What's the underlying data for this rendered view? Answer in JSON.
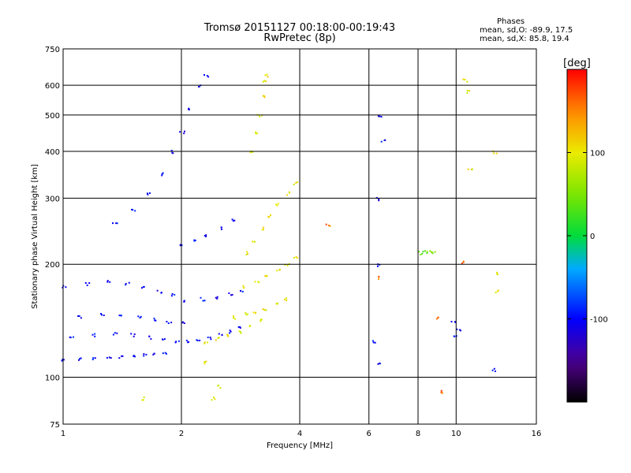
{
  "header": {
    "title_line1": "Tromsø 20151127 00:18:00-00:19:43",
    "title_line2": "RwPretec (8p)",
    "stats_title": "Phases",
    "stats_o": "mean, sd,O: -89.9, 17.5",
    "stats_x": "mean, sd,X:  85.8, 19.4"
  },
  "colorbar": {
    "unit_label": "[deg]",
    "ticks": [
      {
        "value": 100,
        "label": "100"
      },
      {
        "value": 0,
        "label": "0"
      },
      {
        "value": -100,
        "label": "-100"
      }
    ],
    "range": [
      -200,
      200
    ]
  },
  "colors": {
    "background": "#ffffff",
    "axes": "#000000",
    "dominant_o_mode": "#1f3cff",
    "dominant_x_mode": "#e6e61a"
  },
  "chart_data": {
    "type": "scatter",
    "title": "Tromsø 20151127 00:18:00-00:19:43",
    "subtitle": "RwPretec (8p)",
    "xlabel": "Frequency [MHz]",
    "ylabel": "Stationary phase Virtual Height [km]",
    "xscale": "log",
    "yscale": "log",
    "xlim": [
      1,
      16
    ],
    "ylim": [
      75,
      750
    ],
    "xticks": [
      1,
      2,
      4,
      6,
      8,
      10,
      16
    ],
    "xtick_labels": [
      "1",
      "2",
      "4",
      "6",
      "8",
      "10",
      "16"
    ],
    "yticks": [
      75,
      100,
      200,
      300,
      400,
      500,
      600,
      750
    ],
    "ytick_labels": [
      "75",
      "100",
      "200",
      "300",
      "400",
      "500",
      "600",
      "750"
    ],
    "grid": true,
    "color_variable": "Phase [deg]",
    "traces": [
      {
        "mode": "O",
        "phase": -100,
        "points": [
          [
            1.0,
            112
          ],
          [
            1.1,
            112
          ],
          [
            1.2,
            113
          ],
          [
            1.3,
            113
          ],
          [
            1.4,
            114
          ],
          [
            1.5,
            114
          ],
          [
            1.6,
            115
          ],
          [
            1.7,
            116
          ],
          [
            1.8,
            117
          ]
        ]
      },
      {
        "mode": "O",
        "phase": -100,
        "points": [
          [
            1.05,
            128
          ],
          [
            1.2,
            130
          ],
          [
            1.35,
            131
          ],
          [
            1.5,
            130
          ],
          [
            1.65,
            128
          ],
          [
            1.8,
            126
          ],
          [
            1.95,
            125
          ]
        ]
      },
      {
        "mode": "O",
        "phase": -100,
        "points": [
          [
            1.1,
            145
          ],
          [
            1.25,
            147
          ],
          [
            1.4,
            148
          ],
          [
            1.55,
            146
          ],
          [
            1.7,
            143
          ],
          [
            1.85,
            141
          ],
          [
            2.0,
            140
          ]
        ]
      },
      {
        "mode": "O",
        "phase": -100,
        "points": [
          [
            1.0,
            175
          ],
          [
            1.15,
            178
          ],
          [
            1.3,
            180
          ],
          [
            1.45,
            178
          ],
          [
            1.6,
            174
          ],
          [
            1.75,
            170
          ],
          [
            1.9,
            167
          ]
        ]
      },
      {
        "mode": "O",
        "phase": -100,
        "points": [
          [
            2.05,
            125
          ],
          [
            2.2,
            126
          ],
          [
            2.35,
            128
          ],
          [
            2.5,
            130
          ],
          [
            2.65,
            133
          ],
          [
            2.8,
            136
          ]
        ]
      },
      {
        "mode": "O",
        "phase": -100,
        "points": [
          [
            2.05,
            160
          ],
          [
            2.25,
            162
          ],
          [
            2.45,
            164
          ],
          [
            2.65,
            167
          ],
          [
            2.85,
            170
          ]
        ]
      },
      {
        "mode": "O",
        "phase": -100,
        "points": [
          [
            2.0,
            225
          ],
          [
            2.15,
            232
          ],
          [
            2.3,
            240
          ],
          [
            2.5,
            250
          ],
          [
            2.7,
            262
          ]
        ]
      },
      {
        "mode": "O",
        "phase": -100,
        "points": [
          [
            1.35,
            260
          ],
          [
            1.5,
            280
          ],
          [
            1.65,
            310
          ],
          [
            1.8,
            350
          ],
          [
            1.9,
            400
          ],
          [
            2.0,
            450
          ],
          [
            2.1,
            520
          ],
          [
            2.2,
            600
          ],
          [
            2.3,
            640
          ]
        ]
      },
      {
        "mode": "X",
        "phase": 100,
        "points": [
          [
            2.3,
            124
          ],
          [
            2.45,
            127
          ],
          [
            2.6,
            130
          ],
          [
            2.8,
            133
          ],
          [
            3.0,
            137
          ],
          [
            3.2,
            142
          ]
        ]
      },
      {
        "mode": "X",
        "phase": 100,
        "points": [
          [
            2.7,
            145
          ],
          [
            2.9,
            148
          ],
          [
            3.05,
            150
          ],
          [
            3.25,
            153
          ],
          [
            3.45,
            157
          ],
          [
            3.65,
            162
          ]
        ]
      },
      {
        "mode": "X",
        "phase": 100,
        "points": [
          [
            2.9,
            175
          ],
          [
            3.1,
            180
          ],
          [
            3.3,
            186
          ],
          [
            3.5,
            193
          ],
          [
            3.7,
            200
          ],
          [
            3.9,
            210
          ]
        ]
      },
      {
        "mode": "X",
        "phase": 100,
        "points": [
          [
            2.9,
            215
          ],
          [
            3.05,
            230
          ],
          [
            3.2,
            250
          ],
          [
            3.35,
            270
          ],
          [
            3.5,
            290
          ],
          [
            3.7,
            310
          ],
          [
            3.9,
            330
          ]
        ]
      },
      {
        "mode": "X",
        "phase": 100,
        "points": [
          [
            3.0,
            400
          ],
          [
            3.1,
            450
          ],
          [
            3.15,
            500
          ],
          [
            3.2,
            560
          ],
          [
            3.25,
            620
          ],
          [
            3.3,
            640
          ]
        ]
      },
      {
        "mode": "O",
        "phase": -100,
        "points": [
          [
            6.3,
            300
          ],
          [
            6.4,
            500
          ],
          [
            6.5,
            430
          ],
          [
            6.3,
            200
          ],
          [
            6.2,
            125
          ],
          [
            6.3,
            110
          ]
        ]
      },
      {
        "mode": "X",
        "phase": 40,
        "points": [
          [
            8.1,
            215
          ],
          [
            8.3,
            216
          ],
          [
            8.5,
            216
          ],
          [
            8.7,
            217
          ]
        ]
      },
      {
        "mode": "O",
        "phase": -100,
        "points": [
          [
            9.8,
            140
          ],
          [
            9.9,
            130
          ],
          [
            10.1,
            135
          ],
          [
            12.5,
            105
          ]
        ]
      },
      {
        "mode": "X",
        "phase": 100,
        "points": [
          [
            10.5,
            620
          ],
          [
            10.7,
            580
          ],
          [
            10.8,
            360
          ],
          [
            12.5,
            400
          ],
          [
            12.6,
            190
          ],
          [
            12.6,
            170
          ]
        ]
      },
      {
        "mode": "X",
        "phase": 100,
        "points": [
          [
            1.6,
            88
          ],
          [
            2.4,
            88
          ],
          [
            2.5,
            95
          ],
          [
            2.3,
            110
          ]
        ]
      },
      {
        "mode": "O",
        "phase": 160,
        "points": [
          [
            9.1,
            92
          ],
          [
            8.9,
            145
          ],
          [
            6.4,
            185
          ],
          [
            4.7,
            255
          ],
          [
            10.4,
            203
          ]
        ]
      }
    ]
  }
}
